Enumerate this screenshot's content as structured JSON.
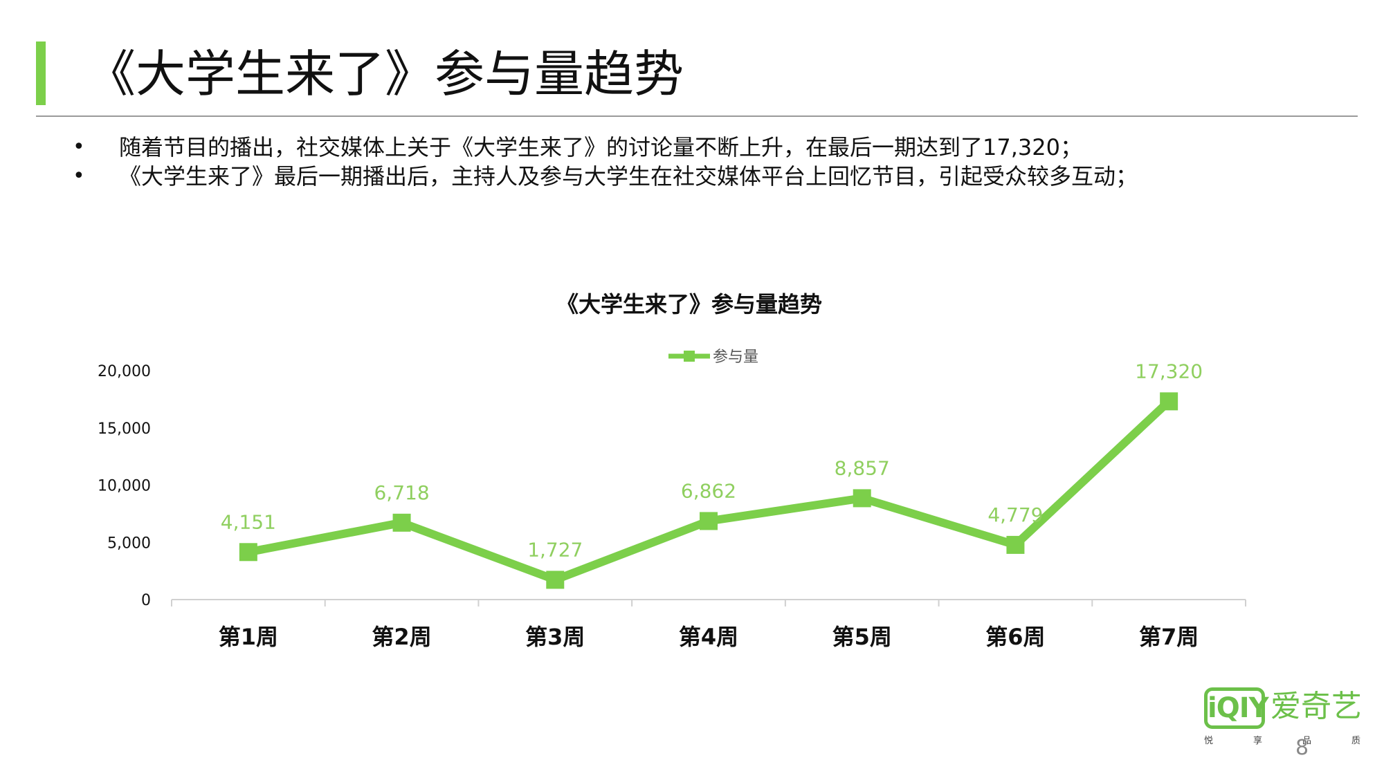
{
  "page": {
    "title": "《大学生来了》参与量趋势",
    "bullets": [
      "随着节目的播出，社交媒体上关于《大学生来了》的讨论量不断上升，在最后一期达到了17,320；",
      "《大学生来了》最后一期播出后，主持人及参与大学生在社交媒体平台上回忆节目，引起受众较多互动；"
    ],
    "bullet_symbol": "•",
    "page_number": "8",
    "accent_color": "#7ccf4a"
  },
  "logo": {
    "mark": "iQIY",
    "text": "爱奇艺",
    "slogan": [
      "悦",
      "享",
      "品",
      "质"
    ]
  },
  "chart_data": {
    "type": "line",
    "title": "《大学生来了》参与量趋势",
    "categories": [
      "第1周",
      "第2周",
      "第3周",
      "第4周",
      "第5周",
      "第6周",
      "第7周"
    ],
    "series": [
      {
        "name": "参与量",
        "values": [
          4151,
          6718,
          1727,
          6862,
          8857,
          4779,
          17320
        ],
        "labels": [
          "4,151",
          "6,718",
          "1,727",
          "6,862",
          "8,857",
          "4,779",
          "17,320"
        ],
        "color": "#7ccf4a"
      }
    ],
    "yticks": [
      "0",
      "5,000",
      "10,000",
      "15,000",
      "20,000"
    ],
    "ytick_values": [
      0,
      5000,
      10000,
      15000,
      20000
    ],
    "ylim": [
      0,
      20000
    ],
    "grid": false,
    "legend": "top-center",
    "marker": "square",
    "label_color": "#8fcf5f",
    "axis_color": "#d0d0d0"
  }
}
